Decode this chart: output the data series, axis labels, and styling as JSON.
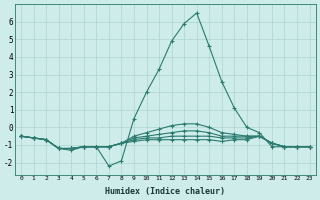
{
  "xlabel": "Humidex (Indice chaleur)",
  "x": [
    0,
    1,
    2,
    3,
    4,
    5,
    6,
    7,
    8,
    9,
    10,
    11,
    12,
    13,
    14,
    15,
    16,
    17,
    18,
    19,
    20,
    21,
    22,
    23
  ],
  "lines": [
    [
      -0.5,
      -0.6,
      -0.7,
      -1.2,
      -1.3,
      -1.1,
      -1.1,
      -2.2,
      -1.9,
      0.5,
      2.0,
      3.3,
      4.9,
      5.9,
      6.5,
      4.6,
      2.6,
      1.1,
      0.0,
      -0.3,
      -1.1,
      -1.1,
      -1.1,
      -1.1
    ],
    [
      -0.5,
      -0.6,
      -0.7,
      -1.2,
      -1.2,
      -1.1,
      -1.1,
      -1.1,
      -0.9,
      -0.5,
      -0.3,
      -0.1,
      0.1,
      0.2,
      0.2,
      0.0,
      -0.3,
      -0.4,
      -0.5,
      -0.5,
      -0.9,
      -1.1,
      -1.1,
      -1.1
    ],
    [
      -0.5,
      -0.6,
      -0.7,
      -1.2,
      -1.2,
      -1.1,
      -1.1,
      -1.1,
      -0.9,
      -0.6,
      -0.5,
      -0.4,
      -0.3,
      -0.2,
      -0.2,
      -0.3,
      -0.5,
      -0.5,
      -0.5,
      -0.5,
      -0.9,
      -1.1,
      -1.1,
      -1.1
    ],
    [
      -0.5,
      -0.6,
      -0.7,
      -1.2,
      -1.2,
      -1.1,
      -1.1,
      -1.1,
      -0.9,
      -0.7,
      -0.6,
      -0.6,
      -0.5,
      -0.5,
      -0.5,
      -0.5,
      -0.6,
      -0.6,
      -0.6,
      -0.5,
      -0.9,
      -1.1,
      -1.1,
      -1.1
    ],
    [
      -0.5,
      -0.6,
      -0.7,
      -1.2,
      -1.2,
      -1.1,
      -1.1,
      -1.1,
      -0.9,
      -0.8,
      -0.7,
      -0.7,
      -0.7,
      -0.7,
      -0.7,
      -0.7,
      -0.8,
      -0.7,
      -0.7,
      -0.5,
      -0.9,
      -1.1,
      -1.1,
      -1.1
    ]
  ],
  "line_color": "#2a7a6e",
  "bg_color": "#ceecea",
  "grid_color": "#aed4d0",
  "ylim": [
    -2.7,
    7.0
  ],
  "yticks": [
    -2,
    -1,
    0,
    1,
    2,
    3,
    4,
    5,
    6
  ],
  "marker": "+",
  "marker_size": 3.5,
  "linewidth": 0.8
}
